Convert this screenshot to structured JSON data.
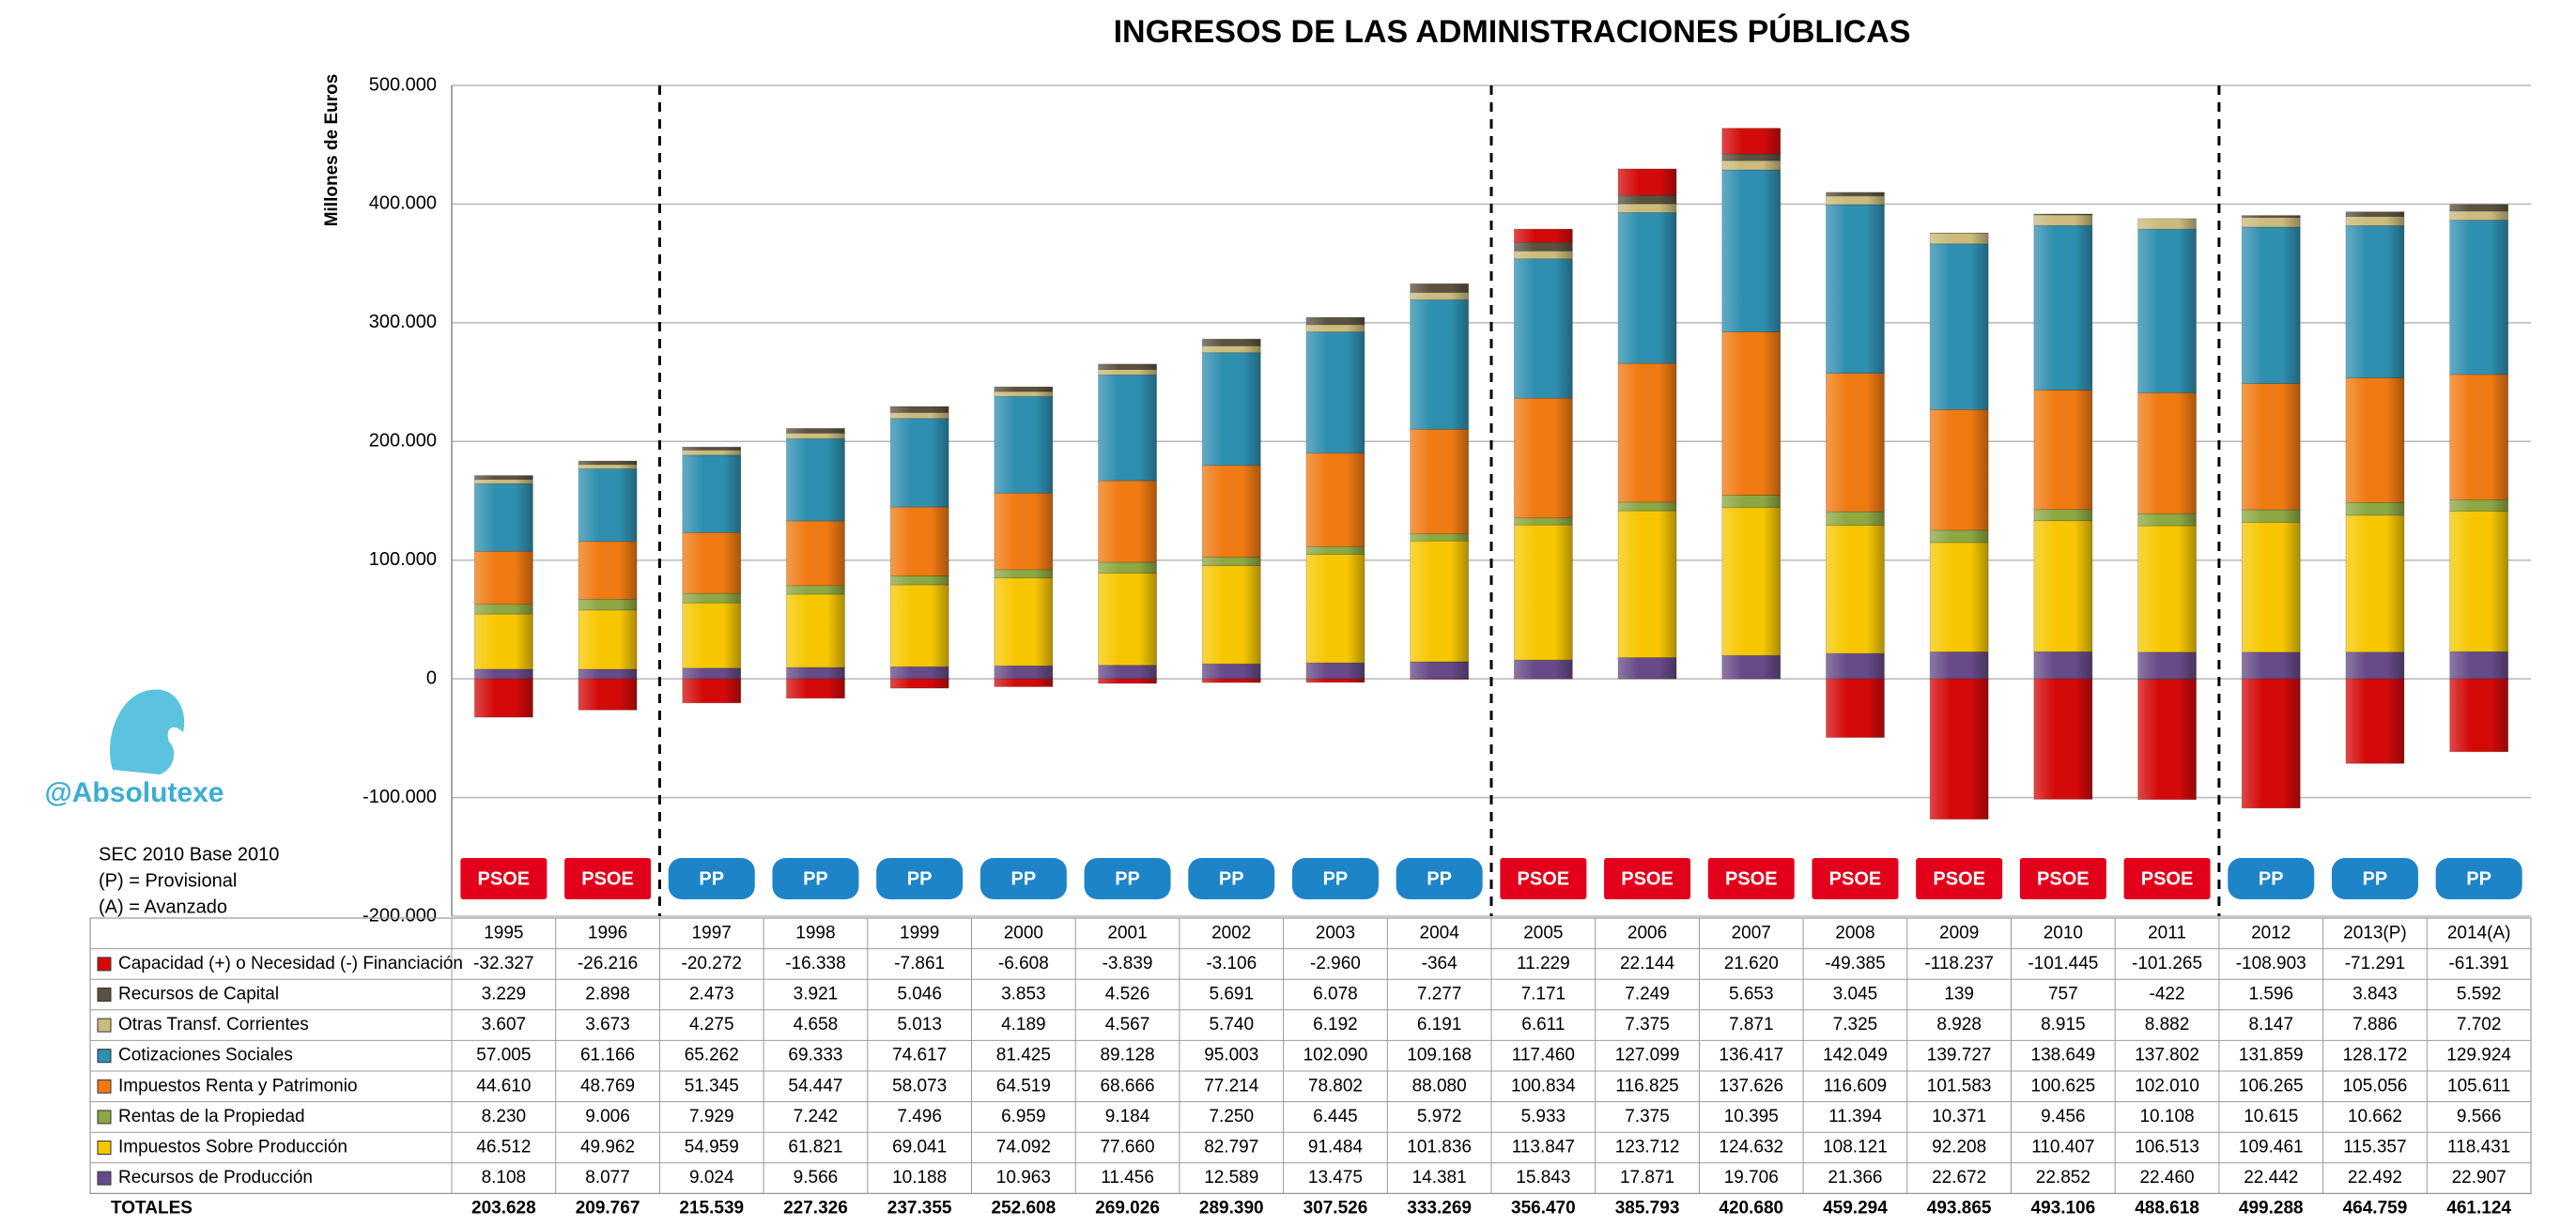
{
  "chart_data": {
    "type": "stacked_bar",
    "title": "INGRESOS DE LAS ADMINISTRACIONES PÚBLICAS",
    "y_label": "Millones de Euros",
    "watermark": "@Absolutexe",
    "notes": [
      "SEC 2010 Base 2010",
      "(P) = Provisional",
      "(A) = Avanzado"
    ],
    "categories": [
      "1995",
      "1996",
      "1997",
      "1998",
      "1999",
      "2000",
      "2001",
      "2002",
      "2003",
      "2004",
      "2005",
      "2006",
      "2007",
      "2008",
      "2009",
      "2010",
      "2011",
      "2012",
      "2013(P)",
      "2014(A)"
    ],
    "parties": [
      "PSOE",
      "PSOE",
      "PP",
      "PP",
      "PP",
      "PP",
      "PP",
      "PP",
      "PP",
      "PP",
      "PSOE",
      "PSOE",
      "PSOE",
      "PSOE",
      "PSOE",
      "PSOE",
      "PSOE",
      "PP",
      "PP",
      "PP"
    ],
    "party_colors": {
      "PSOE": "#e3001b",
      "PP": "#1d84c8"
    },
    "ylim": [
      -200000,
      500000
    ],
    "yticks": [
      {
        "value": -200000,
        "label": "-200.000"
      },
      {
        "value": -100000,
        "label": "-100.000"
      },
      0,
      {
        "value": 100000,
        "label": "100.000"
      },
      {
        "value": 200000,
        "label": "200.000"
      },
      {
        "value": 300000,
        "label": "300.000"
      },
      {
        "value": 400000,
        "label": "400.000"
      },
      {
        "value": 500000,
        "label": "500.000"
      }
    ],
    "grid": true,
    "series": [
      {
        "name": "Capacidad (+) o Necesidad (-) Financiación",
        "color": "#d40a0a",
        "values": [
          -32327,
          -26216,
          -20272,
          -16338,
          -7861,
          -6608,
          -3839,
          -3106,
          -2960,
          -364,
          11229,
          22144,
          21620,
          -49385,
          -118237,
          -101445,
          -101265,
          -108903,
          -71291,
          -61391
        ],
        "value_labels": [
          "-32.327",
          "-26.216",
          "-20.272",
          "-16.338",
          "-7.861",
          "-6.608",
          "-3.839",
          "-3.106",
          "-2.960",
          "-364",
          "11.229",
          "22.144",
          "21.620",
          "-49.385",
          "-118.237",
          "-101.445",
          "-101.265",
          "-108.903",
          "-71.291",
          "-61.391"
        ]
      },
      {
        "name": "Recursos de Capital",
        "color": "#5b5140",
        "values": [
          3229,
          2898,
          2473,
          3921,
          5046,
          3853,
          4526,
          5691,
          6078,
          7277,
          7171,
          7249,
          5653,
          3045,
          139,
          757,
          -422,
          1596,
          3843,
          5592
        ],
        "value_labels": [
          "3.229",
          "2.898",
          "2.473",
          "3.921",
          "5.046",
          "3.853",
          "4.526",
          "5.691",
          "6.078",
          "7.277",
          "7.171",
          "7.249",
          "5.653",
          "3.045",
          "139",
          "757",
          "-422",
          "1.596",
          "3.843",
          "5.592"
        ]
      },
      {
        "name": "Otras Transf. Corrientes",
        "color": "#cbbb7c",
        "values": [
          3607,
          3673,
          4275,
          4658,
          5013,
          4189,
          4567,
          5740,
          6192,
          6191,
          6611,
          7375,
          7871,
          7325,
          8928,
          8915,
          8882,
          8147,
          7886,
          7702
        ],
        "value_labels": [
          "3.607",
          "3.673",
          "4.275",
          "4.658",
          "5.013",
          "4.189",
          "4.567",
          "5.740",
          "6.192",
          "6.191",
          "6.611",
          "7.375",
          "7.871",
          "7.325",
          "8.928",
          "8.915",
          "8.882",
          "8.147",
          "7.886",
          "7.702"
        ]
      },
      {
        "name": "Cotizaciones Sociales",
        "color": "#2f8fb0",
        "values": [
          57005,
          61166,
          65262,
          69333,
          74617,
          81425,
          89128,
          95003,
          102090,
          109168,
          117460,
          127099,
          136417,
          142049,
          139727,
          138649,
          137802,
          131859,
          128172,
          129924
        ],
        "value_labels": [
          "57.005",
          "61.166",
          "65.262",
          "69.333",
          "74.617",
          "81.425",
          "89.128",
          "95.003",
          "102.090",
          "109.168",
          "117.460",
          "127.099",
          "136.417",
          "142.049",
          "139.727",
          "138.649",
          "137.802",
          "131.859",
          "128.172",
          "129.924"
        ]
      },
      {
        "name": "Impuestos Renta y Patrimonio",
        "color": "#f07a12",
        "values": [
          44610,
          48769,
          51345,
          54447,
          58073,
          64519,
          68666,
          77214,
          78802,
          88080,
          100834,
          116825,
          137626,
          116609,
          101583,
          100625,
          102010,
          106265,
          105056,
          105611
        ],
        "value_labels": [
          "44.610",
          "48.769",
          "51.345",
          "54.447",
          "58.073",
          "64.519",
          "68.666",
          "77.214",
          "78.802",
          "88.080",
          "100.834",
          "116.825",
          "137.626",
          "116.609",
          "101.583",
          "100.625",
          "102.010",
          "106.265",
          "105.056",
          "105.611"
        ]
      },
      {
        "name": "Rentas de la Propiedad",
        "color": "#8ca843",
        "values": [
          8230,
          9006,
          7929,
          7242,
          7496,
          6959,
          9184,
          7250,
          6445,
          5972,
          5933,
          7375,
          10395,
          11394,
          10371,
          9456,
          10108,
          10615,
          10662,
          9566
        ],
        "value_labels": [
          "8.230",
          "9.006",
          "7.929",
          "7.242",
          "7.496",
          "6.959",
          "9.184",
          "7.250",
          "6.445",
          "5.972",
          "5.933",
          "7.375",
          "10.395",
          "11.394",
          "10.371",
          "9.456",
          "10.108",
          "10.615",
          "10.662",
          "9.566"
        ]
      },
      {
        "name": "Impuestos Sobre Producción",
        "color": "#f6c700",
        "values": [
          46512,
          49962,
          54959,
          61821,
          69041,
          74092,
          77660,
          82797,
          91484,
          101836,
          113847,
          123712,
          124632,
          108121,
          92208,
          110407,
          106513,
          109461,
          115357,
          118431
        ],
        "value_labels": [
          "46.512",
          "49.962",
          "54.959",
          "61.821",
          "69.041",
          "74.092",
          "77.660",
          "82.797",
          "91.484",
          "101.836",
          "113.847",
          "123.712",
          "124.632",
          "108.121",
          "92.208",
          "110.407",
          "106.513",
          "109.461",
          "115.357",
          "118.431"
        ]
      },
      {
        "name": "Recursos de Producción",
        "color": "#674a88",
        "values": [
          8108,
          8077,
          9024,
          9566,
          10188,
          10963,
          11456,
          12589,
          13475,
          14381,
          15843,
          17871,
          19706,
          21366,
          22672,
          22852,
          22460,
          22442,
          22492,
          22907
        ],
        "value_labels": [
          "8.108",
          "8.077",
          "9.024",
          "9.566",
          "10.188",
          "10.963",
          "11.456",
          "12.589",
          "13.475",
          "14.381",
          "15.843",
          "17.871",
          "19.706",
          "21.366",
          "22.672",
          "22.852",
          "22.460",
          "22.442",
          "22.492",
          "22.907"
        ]
      }
    ],
    "totals": {
      "name": "TOTALES",
      "values": [
        203628,
        209767,
        215539,
        227326,
        237355,
        252608,
        269026,
        289390,
        307526,
        333269,
        356470,
        385793,
        420680,
        459294,
        493865,
        493106,
        488618,
        499288,
        464759,
        461124
      ],
      "value_labels": [
        "203.628",
        "209.767",
        "215.539",
        "227.326",
        "237.355",
        "252.608",
        "269.026",
        "289.390",
        "307.526",
        "333.269",
        "356.470",
        "385.793",
        "420.680",
        "459.294",
        "493.865",
        "493.106",
        "488.618",
        "499.288",
        "464.759",
        "461.124"
      ]
    }
  }
}
